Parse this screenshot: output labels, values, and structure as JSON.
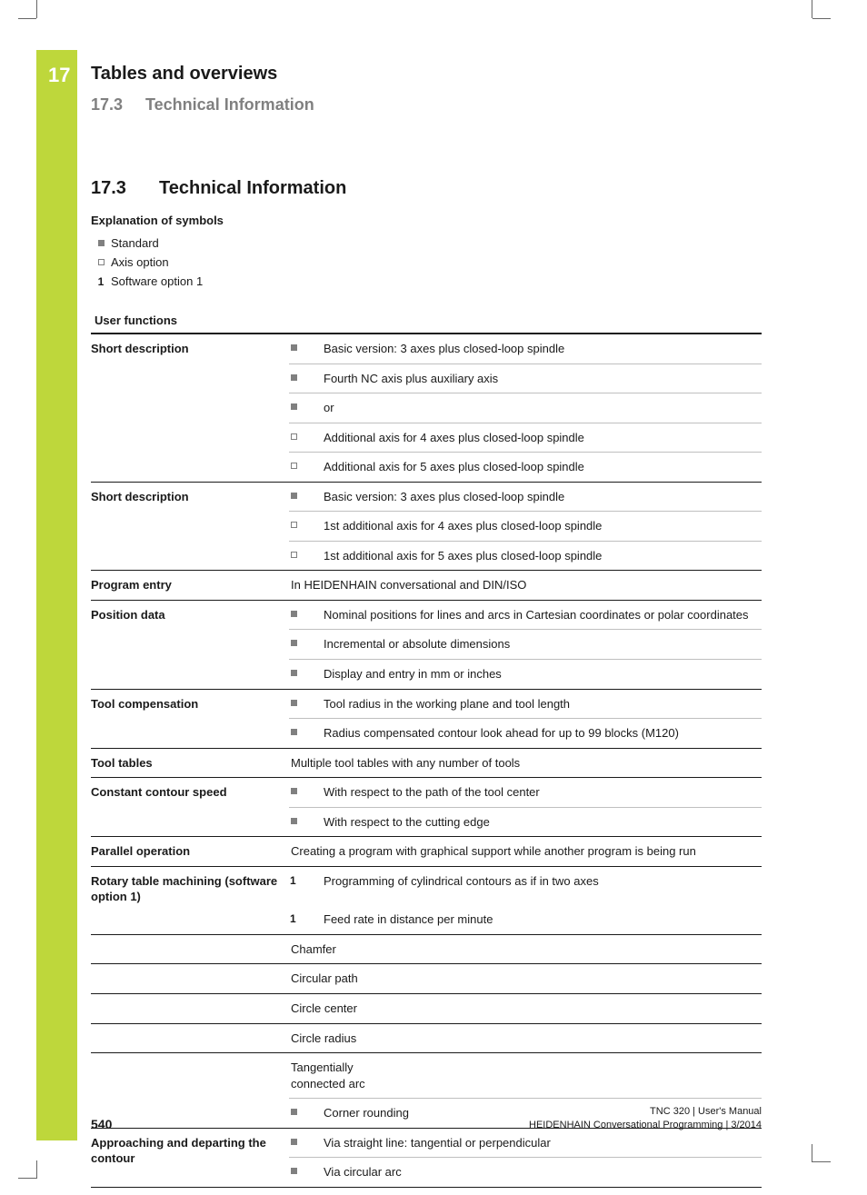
{
  "chapter_number": "17",
  "header": {
    "title": "Tables and overviews",
    "sub_num": "17.3",
    "sub_title": "Technical Information"
  },
  "section": {
    "num": "17.3",
    "title": "Technical Information"
  },
  "legend": {
    "title": "Explanation of symbols",
    "standard": "Standard",
    "axis_option": "Axis option",
    "opt1_sym": "1",
    "opt1_label": "Software option 1"
  },
  "table_title": "User functions",
  "rows": [
    {
      "label": "Short description",
      "items": [
        {
          "sym": "filled",
          "text": "Basic version: 3 axes plus closed-loop spindle"
        },
        {
          "sym": "filled",
          "text": "Fourth NC axis plus auxiliary axis"
        },
        {
          "sym": "filled",
          "text": "or"
        },
        {
          "sym": "hollow",
          "text": "Additional axis for 4 axes plus closed-loop spindle"
        },
        {
          "sym": "hollow",
          "text": "Additional axis for 5 axes plus closed-loop spindle"
        }
      ]
    },
    {
      "label": "Short description",
      "items": [
        {
          "sym": "filled",
          "text": "Basic version: 3 axes plus closed-loop spindle"
        },
        {
          "sym": "hollow",
          "text": "1st additional axis for 4 axes plus closed-loop spindle"
        },
        {
          "sym": "hollow",
          "text": "1st additional axis for 5 axes plus closed-loop spindle"
        }
      ]
    },
    {
      "label": "Program entry",
      "plain": "In HEIDENHAIN conversational  and DIN/ISO"
    },
    {
      "label": "Position data",
      "items": [
        {
          "sym": "filled",
          "text": "Nominal positions for lines and arcs in Cartesian coordinates or polar coordinates"
        },
        {
          "sym": "filled",
          "text": "Incremental or absolute dimensions"
        },
        {
          "sym": "filled",
          "text": "Display and entry in mm or inches"
        }
      ]
    },
    {
      "label": "Tool compensation",
      "items": [
        {
          "sym": "filled",
          "text": "Tool radius in the working plane and tool length"
        },
        {
          "sym": "filled",
          "text": "Radius compensated contour look ahead for up to 99 blocks (M120)"
        }
      ]
    },
    {
      "label": "Tool tables",
      "plain": "Multiple tool tables with any number of tools"
    },
    {
      "label": "Constant contour speed",
      "items": [
        {
          "sym": "filled",
          "text": "With respect to the path of the tool center"
        },
        {
          "sym": "filled",
          "text": "With respect to the cutting edge"
        }
      ]
    },
    {
      "label": "Parallel operation",
      "plain": "Creating a program with graphical support while another program is being run"
    },
    {
      "label": "Rotary table machining (software option 1)",
      "items": [
        {
          "sym": "num",
          "num": "1",
          "text": "Programming of cylindrical contours as if in two axes"
        },
        {
          "sym": "num",
          "num": "1",
          "text": "Feed rate in distance per minute"
        }
      ],
      "label_break": true
    },
    {
      "label_sym": "filled",
      "plain_narrow": "Chamfer"
    },
    {
      "label_sym": "filled",
      "plain_narrow": "Circular path"
    },
    {
      "label_sym": "filled",
      "plain_narrow": "Circle center"
    },
    {
      "label_sym": "filled",
      "plain_narrow": "Circle radius"
    },
    {
      "label_sym": "filled",
      "plain_narrow": "Tangentially connected arc",
      "extra_item": {
        "sym": "filled",
        "text": "Corner rounding"
      }
    },
    {
      "label": "Approaching and departing the contour",
      "items": [
        {
          "sym": "filled",
          "text": "Via straight line: tangential or perpendicular"
        },
        {
          "sym": "filled",
          "text": "Via circular arc"
        }
      ]
    }
  ],
  "footer": {
    "page": "540",
    "line1": "TNC 320 | User's Manual",
    "line2": "HEIDENHAIN Conversational Programming | 3/2014"
  },
  "colors": {
    "accent": "#bed73b",
    "grey": "#808080"
  }
}
